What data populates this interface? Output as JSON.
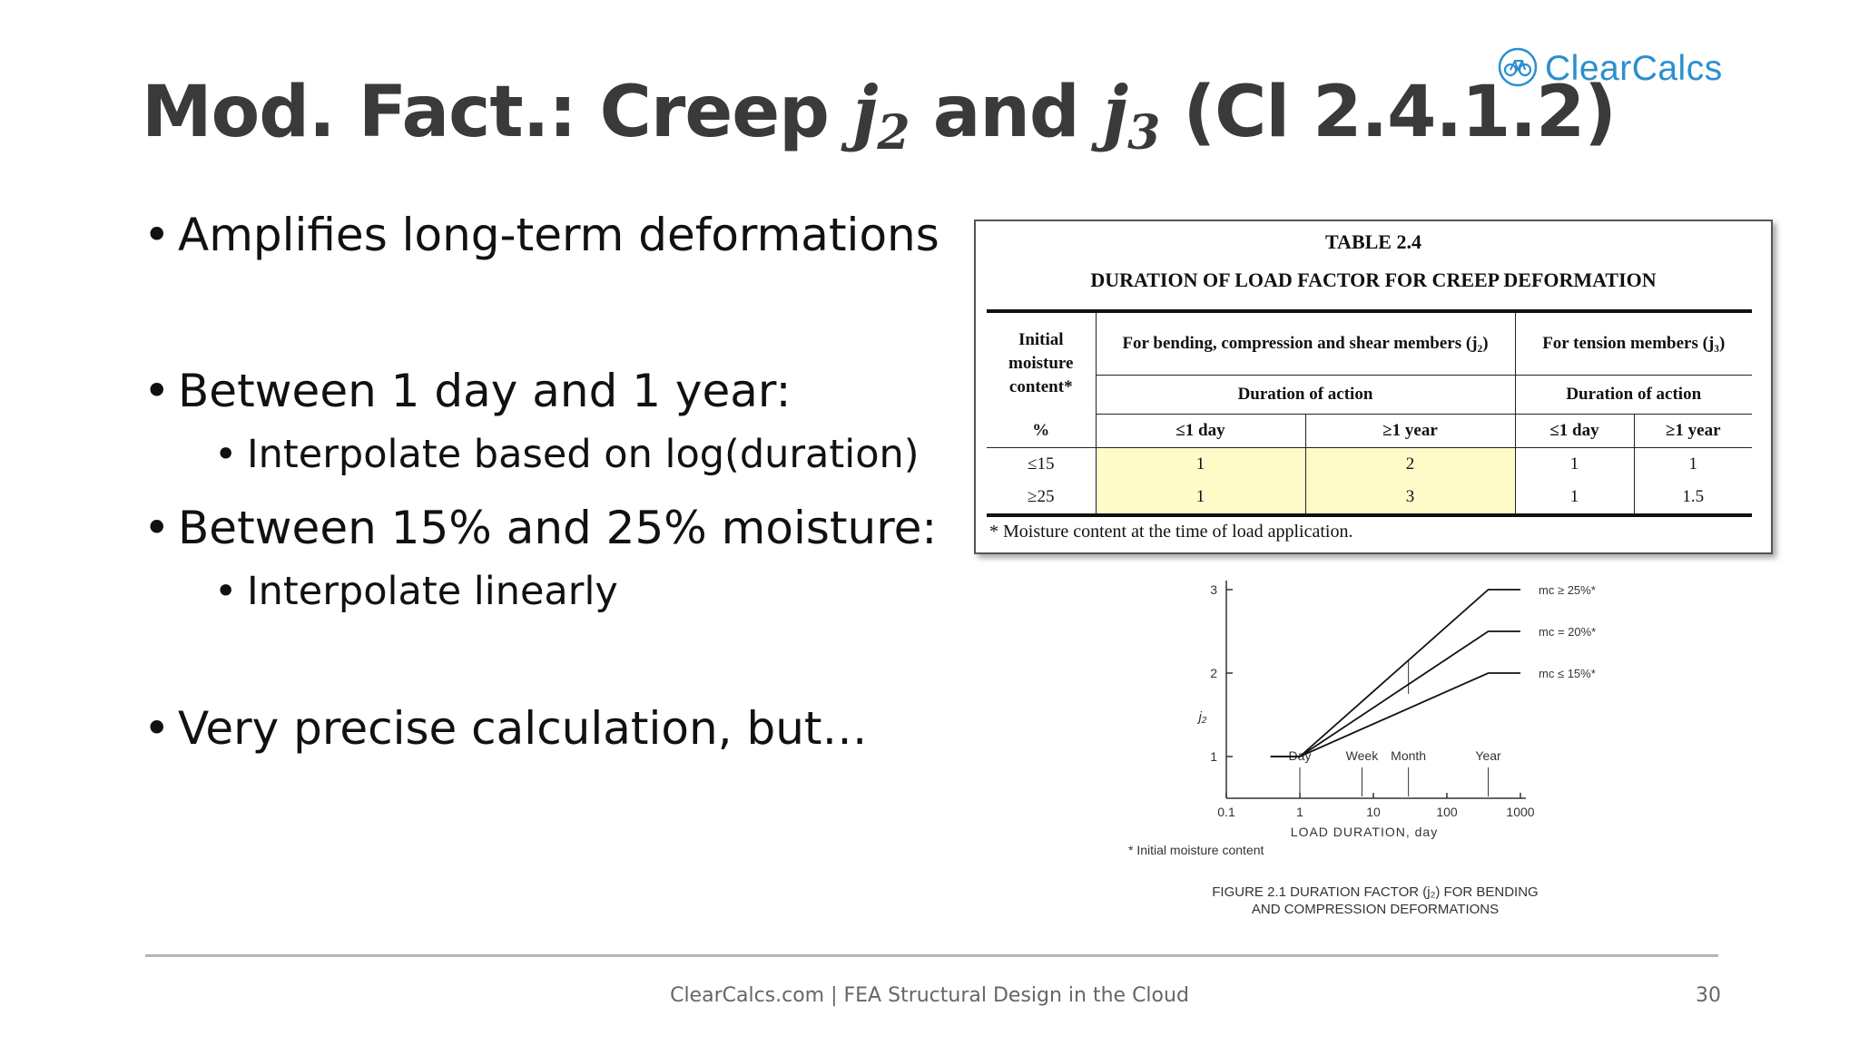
{
  "logo": {
    "text": "ClearCalcs",
    "icon": "bicycle-icon",
    "color": "#2b8fcf"
  },
  "title": {
    "prefix": "Mod. Fact.: Creep ",
    "var1": "j",
    "sub1": "2",
    "mid": " and ",
    "var2": "j",
    "sub2": "3",
    "suffix": " (Cl 2.4.1.2)"
  },
  "bullets": [
    {
      "text": "Amplifies long-term deformations"
    },
    {
      "text": "Between 1 day and 1 year:",
      "sub": "Interpolate based on log(duration)"
    },
    {
      "text": "Between 15% and 25% moisture:",
      "sub": "Interpolate linearly"
    },
    {
      "text": "Very precise calculation, but…"
    }
  ],
  "table": {
    "number": "TABLE   2.4",
    "caption": "DURATION OF LOAD FACTOR FOR CREEP DEFORMATION",
    "col_moisture": "Initial moisture content*",
    "col_bending": "For bending, compression and shear members (j₂)",
    "col_tension": "For tension members (j₃)",
    "duration_bending": "Duration of action",
    "duration_tension": "Duration of action",
    "unit": "%",
    "le_day_1": "≤1 day",
    "ge_year_1": "≥1 year",
    "le_day_2": "≤1 day",
    "ge_year_2": "≥1 year",
    "rows": [
      {
        "moisture": "≤15",
        "j2_day": "1",
        "j2_year": "2",
        "j3_day": "1",
        "j3_year": "1"
      },
      {
        "moisture": "≥25",
        "j2_day": "1",
        "j2_year": "3",
        "j3_day": "1",
        "j3_year": "1.5"
      }
    ],
    "highlight_color": "#fffbc8",
    "footnote": "* Moisture content at the time of load application."
  },
  "chart_data": {
    "type": "line",
    "xscale": "log",
    "xlabel": "LOAD DURATION, day",
    "ylabel": "j₂",
    "x_ticks": [
      "0.1",
      "1",
      "10",
      "100",
      "1000"
    ],
    "y_ticks": [
      "1",
      "2",
      "3"
    ],
    "xlim": [
      0.1,
      1000
    ],
    "ylim": [
      0.5,
      3
    ],
    "duration_markers": [
      {
        "label": "Day",
        "x": 1
      },
      {
        "label": "Week",
        "x": 7
      },
      {
        "label": "Month",
        "x": 30
      },
      {
        "label": "Year",
        "x": 365
      }
    ],
    "series": [
      {
        "name": "mc ≥  25%*",
        "x": [
          0.4,
          1,
          365,
          1000
        ],
        "y": [
          1,
          1,
          3,
          3
        ]
      },
      {
        "name": "mc  =  20%*",
        "x": [
          0.4,
          1,
          365,
          1000
        ],
        "y": [
          1,
          1,
          2.5,
          2.5
        ]
      },
      {
        "name": "mc ≤  15%*",
        "x": [
          0.4,
          1,
          365,
          1000
        ],
        "y": [
          1,
          1,
          2,
          2
        ]
      }
    ],
    "annotation": "* Initial moisture content",
    "caption_line1": "FIGURE  2.1   DURATION FACTOR (j₂) FOR BENDING",
    "caption_line2": "AND COMPRESSION DEFORMATIONS"
  },
  "footer": {
    "text": "ClearCalcs.com | FEA Structural Design in the Cloud",
    "page": "30"
  }
}
